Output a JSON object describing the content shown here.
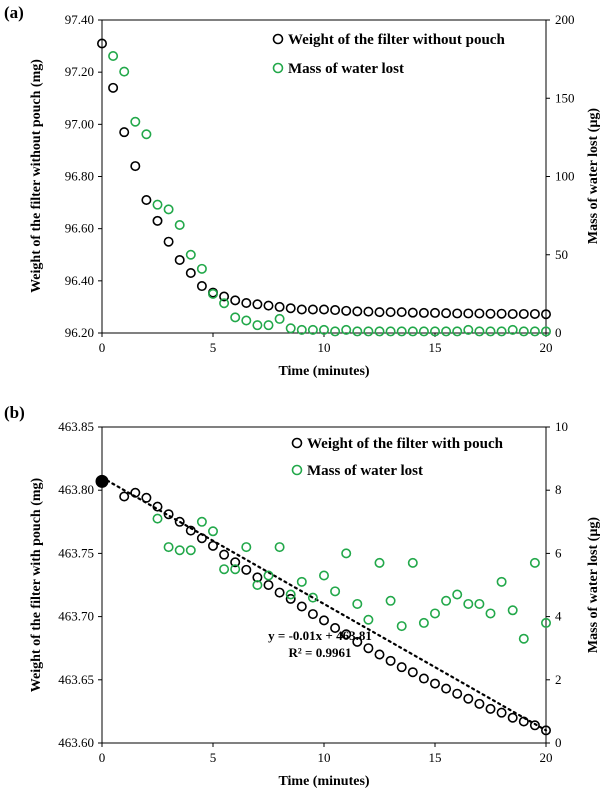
{
  "chart_data": [
    {
      "type": "scatter",
      "panel_label": "(a)",
      "xlabel": "Time (minutes)",
      "ylabel": "Weight of the filter without pouch (mg)",
      "y2label": "Mass of water lost (µg)",
      "xlim": [
        0,
        20
      ],
      "ylim": [
        96.2,
        97.4
      ],
      "y2lim": [
        0,
        200
      ],
      "xticks": [
        "0",
        "5",
        "10",
        "15",
        "20"
      ],
      "yticks": [
        "96.20",
        "96.40",
        "96.60",
        "96.80",
        "97.00",
        "97.20",
        "97.40"
      ],
      "y2ticks": [
        "0",
        "50",
        "100",
        "150",
        "200"
      ],
      "legend_position": "top-right",
      "series": [
        {
          "name": "Weight of the filter without pouch",
          "axis": "left",
          "color": "#000000",
          "x": [
            0,
            0.5,
            1,
            1.5,
            2,
            2.5,
            3,
            3.5,
            4,
            4.5,
            5,
            5.5,
            6,
            6.5,
            7,
            7.5,
            8,
            8.5,
            9,
            9.5,
            10,
            10.5,
            11,
            11.5,
            12,
            12.5,
            13,
            13.5,
            14,
            14.5,
            15,
            15.5,
            16,
            16.5,
            17,
            17.5,
            18,
            18.5,
            19,
            19.5,
            20
          ],
          "y": [
            97.31,
            97.14,
            96.97,
            96.84,
            96.71,
            96.63,
            96.55,
            96.48,
            96.43,
            96.38,
            96.355,
            96.34,
            96.325,
            96.315,
            96.31,
            96.305,
            96.3,
            96.295,
            96.29,
            96.29,
            96.29,
            96.288,
            96.285,
            96.283,
            96.282,
            96.28,
            96.28,
            96.28,
            96.278,
            96.277,
            96.277,
            96.276,
            96.275,
            96.275,
            96.275,
            96.274,
            96.274,
            96.273,
            96.273,
            96.273,
            96.272
          ]
        },
        {
          "name": "Mass of water lost",
          "axis": "right",
          "color": "#22a84a",
          "x": [
            0.5,
            1,
            1.5,
            2,
            2.5,
            3,
            3.5,
            4,
            4.5,
            5,
            5.5,
            6,
            6.5,
            7,
            7.5,
            8,
            8.5,
            9,
            9.5,
            10,
            10.5,
            11,
            11.5,
            12,
            12.5,
            13,
            13.5,
            14,
            14.5,
            15,
            15.5,
            16,
            16.5,
            17,
            17.5,
            18,
            18.5,
            19,
            19.5,
            20
          ],
          "y": [
            177,
            167,
            135,
            127,
            82,
            79,
            69,
            50,
            41,
            25,
            19,
            10,
            8,
            5,
            5,
            9,
            3,
            2,
            2,
            2,
            1,
            2,
            1,
            1,
            1,
            1,
            1,
            1,
            1,
            1,
            1,
            1,
            2,
            1,
            1,
            1,
            2,
            1,
            1,
            1
          ]
        }
      ]
    },
    {
      "type": "scatter",
      "panel_label": "(b)",
      "xlabel": "Time (minutes)",
      "ylabel": "Weight of the filter with pouch (mg)",
      "y2label": "Mass of water lost (µg)",
      "xlim": [
        0,
        20
      ],
      "ylim": [
        463.6,
        463.85
      ],
      "y2lim": [
        0,
        10
      ],
      "xticks": [
        "0",
        "5",
        "10",
        "15",
        "20"
      ],
      "yticks": [
        "463.60",
        "463.65",
        "463.70",
        "463.75",
        "463.80",
        "463.85"
      ],
      "y2ticks": [
        "0",
        "2",
        "4",
        "6",
        "8",
        "10"
      ],
      "legend_position": "top-right",
      "annotation": {
        "equation": "y = -0.01x + 463.81",
        "r2": "R² = 0.9961"
      },
      "trendline": {
        "slope": -0.01,
        "intercept": 463.81,
        "x_range": [
          0,
          20
        ]
      },
      "start_point": {
        "x": 0,
        "y": 463.807
      },
      "series": [
        {
          "name": "Weight of the filter with pouch",
          "axis": "left",
          "color": "#000000",
          "x": [
            1,
            1.5,
            2,
            2.5,
            3,
            3.5,
            4,
            4.5,
            5,
            5.5,
            6,
            6.5,
            7,
            7.5,
            8,
            8.5,
            9,
            9.5,
            10,
            10.5,
            11,
            11.5,
            12,
            12.5,
            13,
            13.5,
            14,
            14.5,
            15,
            15.5,
            16,
            16.5,
            17,
            17.5,
            18,
            18.5,
            19,
            19.5,
            20
          ],
          "y": [
            463.795,
            463.798,
            463.794,
            463.787,
            463.781,
            463.775,
            463.768,
            463.762,
            463.756,
            463.749,
            463.743,
            463.737,
            463.731,
            463.725,
            463.719,
            463.714,
            463.708,
            463.702,
            463.697,
            463.691,
            463.686,
            463.68,
            463.675,
            463.67,
            463.665,
            463.66,
            463.656,
            463.651,
            463.647,
            463.643,
            463.639,
            463.635,
            463.631,
            463.627,
            463.624,
            463.62,
            463.617,
            463.614,
            463.61
          ]
        },
        {
          "name": "Mass of water lost",
          "axis": "right",
          "color": "#22a84a",
          "x": [
            2.5,
            3,
            3.5,
            4,
            4.5,
            5,
            5.5,
            6,
            6.5,
            7,
            7.5,
            8,
            8.5,
            9,
            9.5,
            10,
            10.5,
            11,
            11.5,
            12,
            12.5,
            13,
            13.5,
            14,
            14.5,
            15,
            15.5,
            16,
            16.5,
            17,
            17.5,
            18,
            18.5,
            19,
            19.5,
            20
          ],
          "y": [
            7.1,
            6.2,
            6.1,
            6.1,
            7.0,
            6.7,
            5.5,
            5.5,
            6.2,
            5.0,
            5.3,
            6.2,
            4.7,
            5.1,
            4.6,
            5.3,
            4.8,
            6.0,
            4.4,
            3.9,
            5.7,
            4.5,
            3.7,
            5.7,
            3.8,
            4.1,
            4.5,
            4.7,
            4.4,
            4.4,
            4.1,
            5.1,
            4.2,
            3.3,
            5.7,
            3.8
          ]
        }
      ]
    }
  ]
}
